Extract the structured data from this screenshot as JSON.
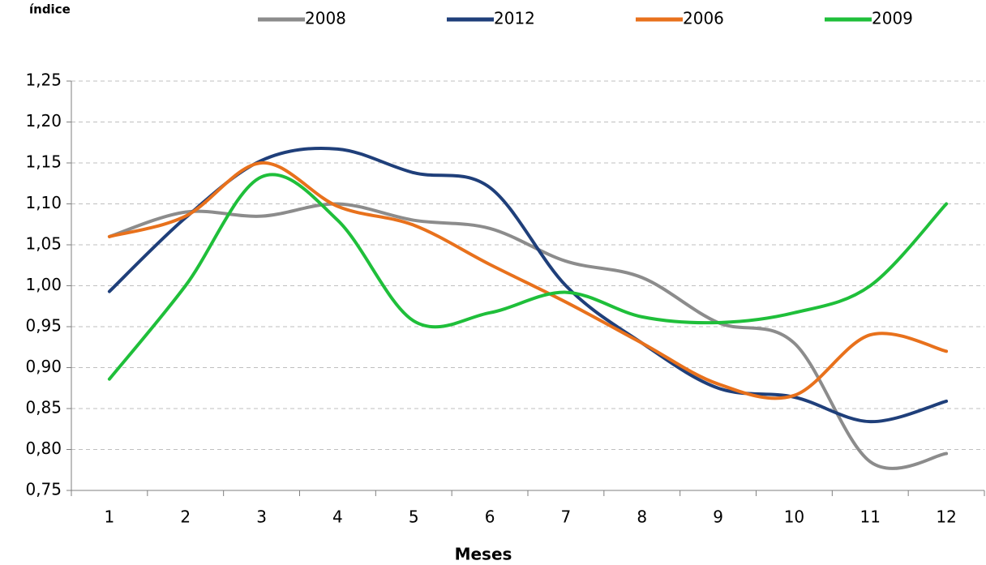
{
  "chart_data": {
    "type": "line",
    "y_label": "índice",
    "x_label": "Meses",
    "categories": [
      "1",
      "2",
      "3",
      "4",
      "5",
      "6",
      "7",
      "8",
      "9",
      "10",
      "11",
      "12"
    ],
    "series": [
      {
        "name": "2008",
        "color": "#8c8c8c",
        "values": [
          1.06,
          1.09,
          1.085,
          1.1,
          1.08,
          1.07,
          1.03,
          1.01,
          0.955,
          0.93,
          0.785,
          0.795
        ]
      },
      {
        "name": "2012",
        "color": "#1f3f7a",
        "values": [
          0.993,
          1.083,
          1.153,
          1.167,
          1.138,
          1.12,
          1.0,
          0.93,
          0.875,
          0.864,
          0.834,
          0.859
        ]
      },
      {
        "name": "2006",
        "color": "#e8711c",
        "values": [
          1.06,
          1.085,
          1.15,
          1.097,
          1.074,
          1.026,
          0.98,
          0.93,
          0.88,
          0.866,
          0.94,
          0.92
        ]
      },
      {
        "name": "2009",
        "color": "#1fbf3a",
        "values": [
          0.886,
          1.0,
          1.133,
          1.08,
          0.957,
          0.967,
          0.992,
          0.962,
          0.955,
          0.967,
          1.0,
          1.1
        ]
      }
    ],
    "ylim": [
      0.75,
      1.25
    ],
    "yticks": [
      {
        "value": 0.75,
        "label": "0,75"
      },
      {
        "value": 0.8,
        "label": "0,80"
      },
      {
        "value": 0.85,
        "label": "0,85"
      },
      {
        "value": 0.9,
        "label": "0,90"
      },
      {
        "value": 0.95,
        "label": "0,95"
      },
      {
        "value": 1.0,
        "label": "1,00"
      },
      {
        "value": 1.05,
        "label": "1,05"
      },
      {
        "value": 1.1,
        "label": "1,10"
      },
      {
        "value": 1.15,
        "label": "1,15"
      },
      {
        "value": 1.2,
        "label": "1,20"
      },
      {
        "value": 1.25,
        "label": "1,25"
      }
    ],
    "grid": true,
    "legend": "top"
  }
}
